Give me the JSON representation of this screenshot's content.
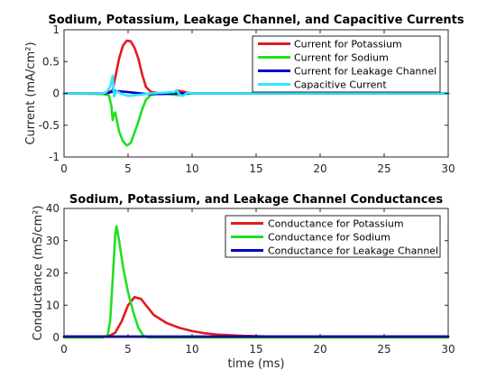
{
  "chart_data": [
    {
      "type": "line",
      "title": "Sodium, Potassium, Leakage Channel, and Capacitive Currents",
      "xlabel": "",
      "ylabel": "Current (mA/cm²)",
      "xlim": [
        0,
        30
      ],
      "ylim": [
        -1,
        1
      ],
      "xticks": [
        0,
        5,
        10,
        15,
        20,
        25,
        30
      ],
      "xtick_labels": [
        "0",
        "5",
        "10",
        "15",
        "20",
        "25",
        "30"
      ],
      "yticks": [
        -1,
        -0.5,
        0,
        0.5,
        1
      ],
      "ytick_labels": [
        "-1",
        "-0.5",
        "0",
        "0.5",
        "1"
      ],
      "grid": false,
      "legend_position": "top-right",
      "series": [
        {
          "name": "Current for Potassium",
          "color": "#e41a1c",
          "points": [
            [
              0,
              0
            ],
            [
              3,
              0
            ],
            [
              3.5,
              0.02
            ],
            [
              3.8,
              0.05
            ],
            [
              4.0,
              0.25
            ],
            [
              4.3,
              0.55
            ],
            [
              4.6,
              0.75
            ],
            [
              4.9,
              0.83
            ],
            [
              5.2,
              0.82
            ],
            [
              5.5,
              0.72
            ],
            [
              5.8,
              0.55
            ],
            [
              6.1,
              0.3
            ],
            [
              6.4,
              0.1
            ],
            [
              6.8,
              0.02
            ],
            [
              7.5,
              0.0
            ],
            [
              8.5,
              0.01
            ],
            [
              9.0,
              0.04
            ],
            [
              9.5,
              0.02
            ],
            [
              10,
              0.0
            ],
            [
              12,
              0.0
            ],
            [
              30,
              0.0
            ]
          ]
        },
        {
          "name": "Current for Sodium",
          "color": "#1fe01f",
          "points": [
            [
              0,
              0
            ],
            [
              3,
              -0.01
            ],
            [
              3.5,
              -0.03
            ],
            [
              3.7,
              -0.2
            ],
            [
              3.8,
              -0.42
            ],
            [
              3.9,
              -0.32
            ],
            [
              4.0,
              -0.3
            ],
            [
              4.15,
              -0.45
            ],
            [
              4.3,
              -0.6
            ],
            [
              4.6,
              -0.75
            ],
            [
              4.9,
              -0.82
            ],
            [
              5.2,
              -0.78
            ],
            [
              5.5,
              -0.62
            ],
            [
              5.8,
              -0.45
            ],
            [
              6.1,
              -0.25
            ],
            [
              6.4,
              -0.1
            ],
            [
              6.8,
              -0.02
            ],
            [
              7.5,
              0.0
            ],
            [
              8.6,
              -0.02
            ],
            [
              9.0,
              -0.03
            ],
            [
              9.5,
              -0.01
            ],
            [
              10,
              0.0
            ],
            [
              30,
              0.0
            ]
          ]
        },
        {
          "name": "Current for Leakage Channel",
          "color": "#0000cc",
          "points": [
            [
              0,
              0
            ],
            [
              3,
              0
            ],
            [
              3.5,
              0.01
            ],
            [
              4.0,
              0.04
            ],
            [
              4.5,
              0.03
            ],
            [
              5.0,
              0.02
            ],
            [
              5.5,
              0.01
            ],
            [
              6.0,
              0.0
            ],
            [
              6.5,
              -0.01
            ],
            [
              7.5,
              -0.01
            ],
            [
              9,
              0.0
            ],
            [
              30,
              0.0
            ]
          ]
        },
        {
          "name": "Capacitive Current",
          "color": "#33e6ff",
          "points": [
            [
              0,
              0
            ],
            [
              3,
              0
            ],
            [
              3.3,
              0.02
            ],
            [
              3.6,
              0.1
            ],
            [
              3.8,
              0.28
            ],
            [
              3.85,
              0.12
            ],
            [
              3.9,
              -0.05
            ],
            [
              4.1,
              0.04
            ],
            [
              4.4,
              0.0
            ],
            [
              5.0,
              -0.04
            ],
            [
              6.0,
              -0.02
            ],
            [
              6.8,
              0.0
            ],
            [
              8.6,
              0.02
            ],
            [
              8.8,
              0.05
            ],
            [
              9.0,
              -0.02
            ],
            [
              9.3,
              -0.04
            ],
            [
              9.6,
              0.01
            ],
            [
              10,
              0.0
            ],
            [
              30,
              0.0
            ]
          ]
        }
      ]
    },
    {
      "type": "line",
      "title": "Sodium, Potassium, and Leakage Channel Conductances",
      "xlabel": "time (ms)",
      "ylabel": "Conductance (mS/cm²)",
      "xlim": [
        0,
        30
      ],
      "ylim": [
        0,
        40
      ],
      "xticks": [
        0,
        5,
        10,
        15,
        20,
        25,
        30
      ],
      "xtick_labels": [
        "0",
        "5",
        "10",
        "15",
        "20",
        "25",
        "30"
      ],
      "yticks": [
        0,
        10,
        20,
        30,
        40
      ],
      "ytick_labels": [
        "0",
        "10",
        "20",
        "30",
        "40"
      ],
      "grid": false,
      "legend_position": "top-right",
      "series": [
        {
          "name": "Conductance for Potassium",
          "color": "#e41a1c",
          "points": [
            [
              0,
              0.3
            ],
            [
              3,
              0.3
            ],
            [
              3.5,
              0.4
            ],
            [
              4.0,
              1.5
            ],
            [
              4.5,
              5.0
            ],
            [
              5.0,
              10.0
            ],
            [
              5.5,
              12.5
            ],
            [
              6.0,
              12.0
            ],
            [
              6.5,
              9.5
            ],
            [
              7.0,
              7.0
            ],
            [
              8.0,
              4.5
            ],
            [
              9.0,
              3.0
            ],
            [
              10.0,
              2.0
            ],
            [
              11.0,
              1.3
            ],
            [
              12.0,
              0.9
            ],
            [
              14.0,
              0.5
            ],
            [
              16.0,
              0.3
            ],
            [
              20,
              0.3
            ],
            [
              30,
              0.3
            ]
          ]
        },
        {
          "name": "Conductance for Sodium",
          "color": "#1fe01f",
          "points": [
            [
              0,
              0
            ],
            [
              3,
              0
            ],
            [
              3.4,
              0.5
            ],
            [
              3.6,
              5
            ],
            [
              3.8,
              18
            ],
            [
              4.0,
              32
            ],
            [
              4.1,
              34.5
            ],
            [
              4.3,
              30
            ],
            [
              4.6,
              22
            ],
            [
              5.0,
              14
            ],
            [
              5.4,
              8
            ],
            [
              5.8,
              3
            ],
            [
              6.2,
              0.5
            ],
            [
              6.6,
              0
            ],
            [
              30,
              0
            ]
          ]
        },
        {
          "name": "Conductance for Leakage Channel",
          "color": "#0000cc",
          "points": [
            [
              0,
              0.3
            ],
            [
              30,
              0.3
            ]
          ]
        }
      ]
    }
  ]
}
